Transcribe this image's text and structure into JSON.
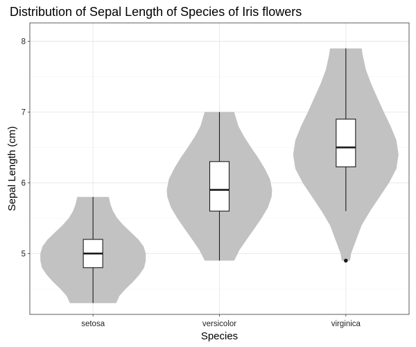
{
  "chart_data": {
    "type": "violin",
    "title": "Distribution of Sepal Length of Species of Iris flowers",
    "xlabel": "Species",
    "ylabel": "Sepal Length (cm)",
    "ylim": [
      4.14,
      8.26
    ],
    "y_ticks": [
      5,
      6,
      7,
      8
    ],
    "grid": true,
    "fill_color": "#c2c2c2",
    "categories": [
      "setosa",
      "versicolor",
      "virginica"
    ],
    "series": [
      {
        "category": "setosa",
        "min": 4.3,
        "q1": 4.8,
        "median": 5.0,
        "q3": 5.2,
        "max": 5.8,
        "outliers": [],
        "density": [
          [
            4.3,
            0.44
          ],
          [
            4.4,
            0.5
          ],
          [
            4.5,
            0.62
          ],
          [
            4.6,
            0.76
          ],
          [
            4.7,
            0.88
          ],
          [
            4.8,
            0.97
          ],
          [
            4.9,
            1.0
          ],
          [
            5.0,
            1.0
          ],
          [
            5.1,
            0.96
          ],
          [
            5.2,
            0.86
          ],
          [
            5.3,
            0.72
          ],
          [
            5.4,
            0.58
          ],
          [
            5.5,
            0.46
          ],
          [
            5.6,
            0.38
          ],
          [
            5.7,
            0.33
          ],
          [
            5.8,
            0.3
          ]
        ]
      },
      {
        "category": "versicolor",
        "min": 4.9,
        "q1": 5.6,
        "median": 5.9,
        "q3": 6.3,
        "max": 7.0,
        "outliers": [],
        "density": [
          [
            4.9,
            0.28
          ],
          [
            5.05,
            0.38
          ],
          [
            5.2,
            0.52
          ],
          [
            5.35,
            0.66
          ],
          [
            5.5,
            0.8
          ],
          [
            5.65,
            0.92
          ],
          [
            5.8,
            0.99
          ],
          [
            5.9,
            1.0
          ],
          [
            6.05,
            0.96
          ],
          [
            6.2,
            0.86
          ],
          [
            6.35,
            0.74
          ],
          [
            6.5,
            0.6
          ],
          [
            6.65,
            0.47
          ],
          [
            6.8,
            0.36
          ],
          [
            7.0,
            0.28
          ]
        ]
      },
      {
        "category": "virginica",
        "min": 5.6,
        "q1": 6.225,
        "median": 6.5,
        "q3": 6.9,
        "max": 7.9,
        "outliers": [
          4.9
        ],
        "density": [
          [
            4.9,
            0.08
          ],
          [
            5.0,
            0.1
          ],
          [
            5.2,
            0.2
          ],
          [
            5.4,
            0.3
          ],
          [
            5.6,
            0.46
          ],
          [
            5.8,
            0.64
          ],
          [
            6.0,
            0.82
          ],
          [
            6.2,
            0.96
          ],
          [
            6.4,
            1.0
          ],
          [
            6.6,
            0.96
          ],
          [
            6.8,
            0.85
          ],
          [
            7.0,
            0.72
          ],
          [
            7.2,
            0.6
          ],
          [
            7.4,
            0.48
          ],
          [
            7.6,
            0.38
          ],
          [
            7.8,
            0.32
          ],
          [
            7.9,
            0.3
          ]
        ]
      }
    ]
  }
}
